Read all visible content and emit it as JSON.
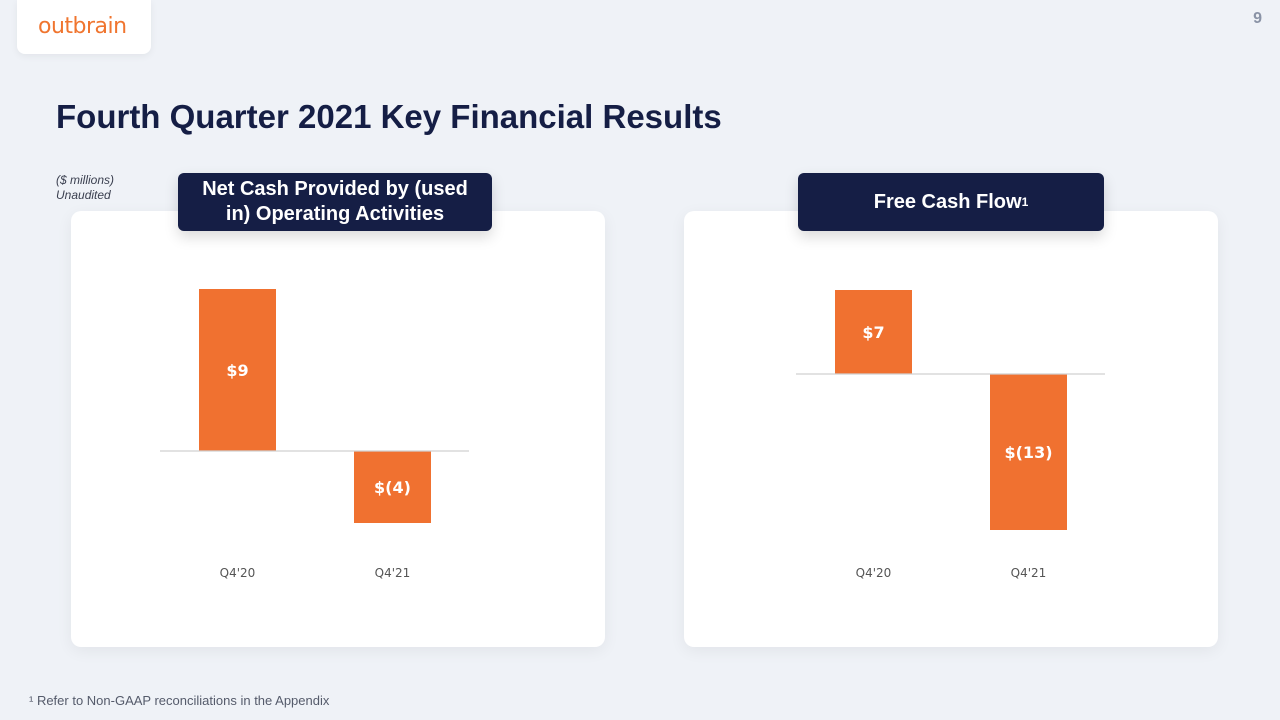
{
  "header": {
    "logo_text": "outbrain",
    "page_number": "9",
    "title": "Fourth Quarter 2021 Key Financial Results"
  },
  "units_note": [
    "($ millions)",
    "Unaudited"
  ],
  "footnote": "¹ Refer to Non-GAAP reconciliations in the Appendix",
  "colors": {
    "bar": "#f07130",
    "pill": "#151e45",
    "title": "#151e45"
  },
  "chart_data": [
    {
      "type": "bar",
      "title": "Net Cash Provided by (used in) Operating Activities",
      "categories": [
        "Q4'20",
        "Q4'21"
      ],
      "values": [
        9,
        -4
      ],
      "data_labels": [
        "$9",
        "$(4)"
      ],
      "unit": "$ millions"
    },
    {
      "type": "bar",
      "title": "Free Cash Flow",
      "title_superscript": "1",
      "categories": [
        "Q4'20",
        "Q4'21"
      ],
      "values": [
        7,
        -13
      ],
      "data_labels": [
        "$7",
        "$(13)"
      ],
      "unit": "$ millions"
    }
  ]
}
